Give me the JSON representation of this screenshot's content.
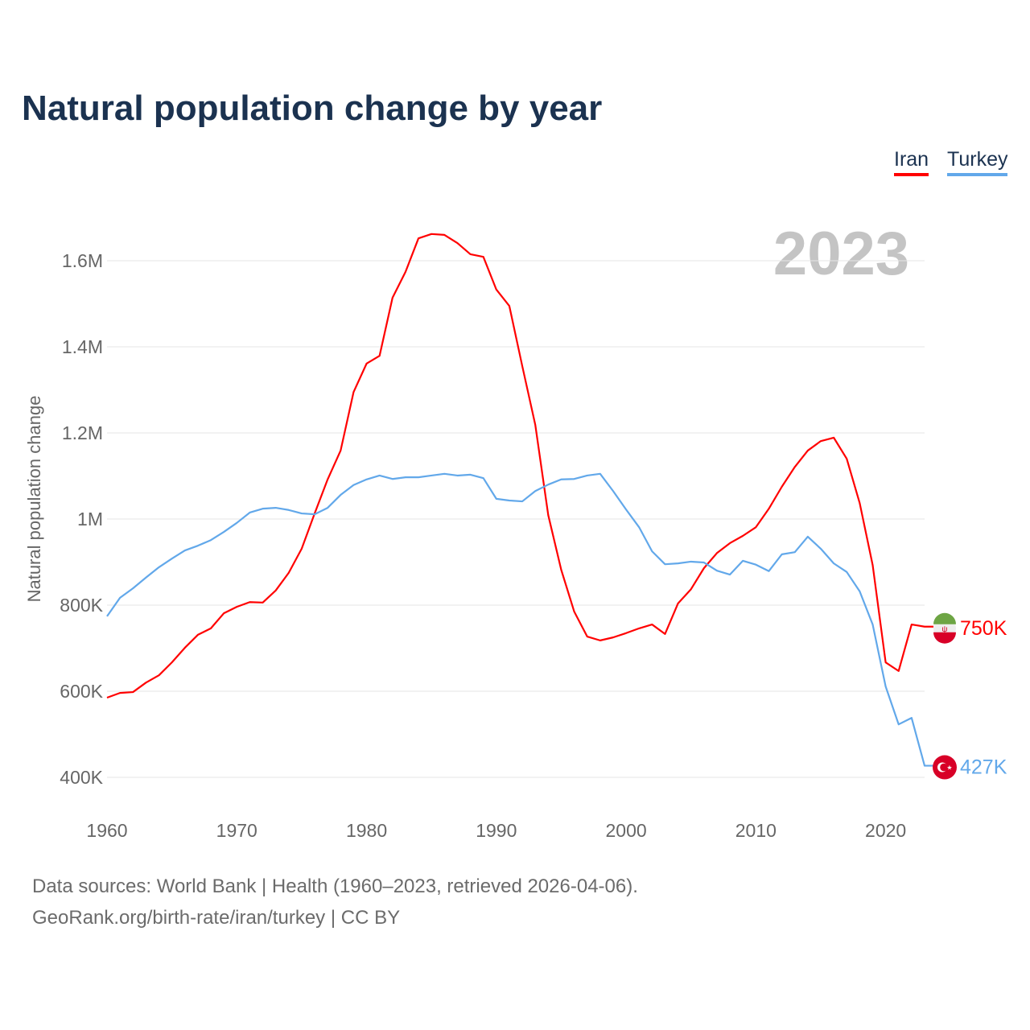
{
  "title": "Natural population change by year",
  "year_label": "2023",
  "legend": [
    {
      "name": "Iran",
      "color": "#ff0000"
    },
    {
      "name": "Turkey",
      "color": "#62a8ea"
    }
  ],
  "source_line1": "Data sources: World Bank | Health (1960–2023, retrieved 2026-04-06).",
  "source_line2": "GeoRank.org/birth-rate/iran/turkey | CC BY",
  "chart_data": {
    "type": "line",
    "title": "Natural population change by year",
    "xlabel": "",
    "ylabel": "Natural population change",
    "xlim": [
      1960,
      2023
    ],
    "ylim": [
      400000,
      1600000
    ],
    "x_ticks": [
      1960,
      1970,
      1980,
      1990,
      2000,
      2010,
      2020
    ],
    "y_ticks": [
      {
        "v": 400000,
        "label": "400K"
      },
      {
        "v": 600000,
        "label": "600K"
      },
      {
        "v": 800000,
        "label": "800K"
      },
      {
        "v": 1000000,
        "label": "1M"
      },
      {
        "v": 1200000,
        "label": "1.2M"
      },
      {
        "v": 1400000,
        "label": "1.4M"
      },
      {
        "v": 1600000,
        "label": "1.6M"
      }
    ],
    "grid": true,
    "legend_position": "top-right",
    "x": [
      1960,
      1961,
      1962,
      1963,
      1964,
      1965,
      1966,
      1967,
      1968,
      1969,
      1970,
      1971,
      1972,
      1973,
      1974,
      1975,
      1976,
      1977,
      1978,
      1979,
      1980,
      1981,
      1982,
      1983,
      1984,
      1985,
      1986,
      1987,
      1988,
      1989,
      1990,
      1991,
      1992,
      1993,
      1994,
      1995,
      1996,
      1997,
      1998,
      1999,
      2000,
      2001,
      2002,
      2003,
      2004,
      2005,
      2006,
      2007,
      2008,
      2009,
      2010,
      2011,
      2012,
      2013,
      2014,
      2015,
      2016,
      2017,
      2018,
      2019,
      2020,
      2021,
      2022,
      2023
    ],
    "series": [
      {
        "name": "Iran",
        "color": "#ff0000",
        "end_label": "750K",
        "values": [
          585,
          596,
          598,
          620,
          637,
          667,
          701,
          731,
          746,
          781,
          796,
          807,
          806,
          834,
          875,
          931,
          1013,
          1092,
          1159,
          1295,
          1361,
          1379,
          1514,
          1574,
          1652,
          1662,
          1660,
          1641,
          1615,
          1609,
          1533,
          1495,
          1355,
          1219,
          1009,
          882,
          785,
          727,
          718,
          725,
          735,
          746,
          755,
          733,
          804,
          837,
          886,
          921,
          944,
          961,
          981,
          1024,
          1075,
          1121,
          1159,
          1181,
          1189,
          1140,
          1037,
          893,
          667,
          647,
          755,
          750
        ]
      },
      {
        "name": "Turkey",
        "color": "#62a8ea",
        "end_label": "427K",
        "values": [
          774,
          817,
          839,
          864,
          888,
          908,
          927,
          938,
          951,
          970,
          991,
          1015,
          1024,
          1026,
          1021,
          1013,
          1011,
          1026,
          1056,
          1079,
          1092,
          1101,
          1093,
          1097,
          1097,
          1101,
          1105,
          1101,
          1103,
          1095,
          1047,
          1043,
          1041,
          1065,
          1080,
          1092,
          1093,
          1101,
          1105,
          1065,
          1022,
          981,
          925,
          895,
          897,
          901,
          899,
          880,
          871,
          903,
          894,
          879,
          918,
          923,
          959,
          931,
          897,
          877,
          832,
          755,
          611,
          523,
          538,
          427
        ]
      }
    ],
    "value_unit": "thousands"
  }
}
